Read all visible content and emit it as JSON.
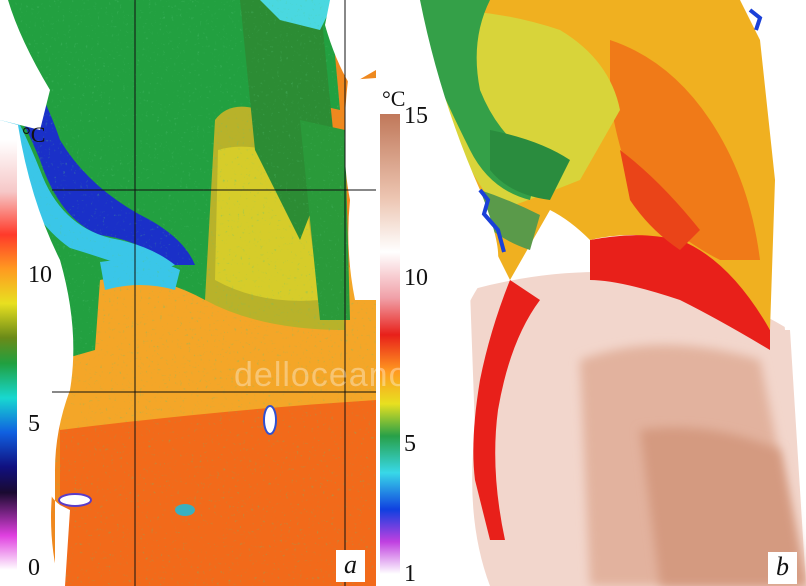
{
  "panel_a": {
    "letter": "a",
    "unit": "°C",
    "scale_ticks": [
      "0",
      "5",
      "10"
    ]
  },
  "panel_b": {
    "letter": "b",
    "unit": "°C",
    "scale_ticks": [
      "1",
      "5",
      "10",
      "15"
    ]
  },
  "watermark": "delloceano",
  "colors": {
    "cold_blue": "#1530c8",
    "cyan": "#38c8e6",
    "green": "#22a040",
    "yellow": "#e8d820",
    "orange": "#f58a1a",
    "red": "#e8201a",
    "pink": "#f4b6b0",
    "tan": "#c88a6c"
  }
}
